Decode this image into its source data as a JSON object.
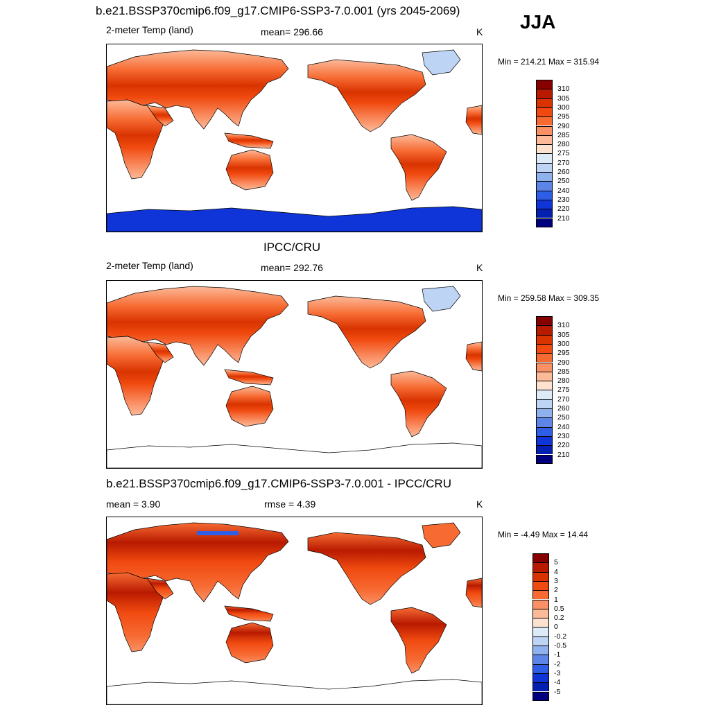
{
  "header": {
    "title": "b.e21.BSSP370cmip6.f09_g17.CMIP6-SSP3-7.0.001 (yrs 2045-2069)",
    "season": "JJA"
  },
  "panels": [
    {
      "title": "",
      "left_label": "2-meter Temp (land)",
      "center_label": "mean= 296.66",
      "units": "K",
      "minmax": "Min = 214.21 Max = 315.94",
      "antarctica": "filled"
    },
    {
      "title": "IPCC/CRU",
      "left_label": "2-meter Temp (land)",
      "center_label": "mean= 292.76",
      "units": "K",
      "minmax": "Min = 259.58 Max = 309.35",
      "antarctica": "outline"
    },
    {
      "title": "b.e21.BSSP370cmip6.f09_g17.CMIP6-SSP3-7.0.001 - IPCC/CRU",
      "left_label": "mean =   3.90",
      "center_label": "rmse =   4.39",
      "units": "K",
      "minmax": "Min =  -4.49 Max =  14.44",
      "antarctica": "outline"
    }
  ],
  "colorbars": [
    {
      "labels": [
        "310",
        "305",
        "300",
        "295",
        "290",
        "285",
        "280",
        "275",
        "270",
        "260",
        "250",
        "240",
        "230",
        "220",
        "210"
      ],
      "colors": [
        "#870000",
        "#b81a00",
        "#d93300",
        "#f04a10",
        "#f76b33",
        "#fa9166",
        "#fcba99",
        "#fde3cf",
        "#ddeaf8",
        "#bed4f4",
        "#8fb1ee",
        "#5d85e8",
        "#2e5de6",
        "#0f35d8",
        "#0420b0",
        "#00007f"
      ]
    },
    {
      "labels": [
        "310",
        "305",
        "300",
        "295",
        "290",
        "285",
        "280",
        "275",
        "270",
        "260",
        "250",
        "240",
        "230",
        "220",
        "210"
      ],
      "colors": [
        "#870000",
        "#b81a00",
        "#d93300",
        "#f04a10",
        "#f76b33",
        "#fa9166",
        "#fcba99",
        "#fde3cf",
        "#ddeaf8",
        "#bed4f4",
        "#8fb1ee",
        "#5d85e8",
        "#2e5de6",
        "#0f35d8",
        "#0420b0",
        "#00007f"
      ]
    },
    {
      "labels": [
        "5",
        "4",
        "3",
        "2",
        "1",
        "0.5",
        "0.2",
        "0",
        "-0.2",
        "-0.5",
        "-1",
        "-2",
        "-3",
        "-4",
        "-5"
      ],
      "colors": [
        "#870000",
        "#b81a00",
        "#d93300",
        "#f04a10",
        "#f76b33",
        "#fa9166",
        "#fcba99",
        "#fde3cf",
        "#ddeaf8",
        "#bed4f4",
        "#8fb1ee",
        "#5d85e8",
        "#2e5de6",
        "#0f35d8",
        "#0420b0",
        "#00007f"
      ]
    }
  ]
}
